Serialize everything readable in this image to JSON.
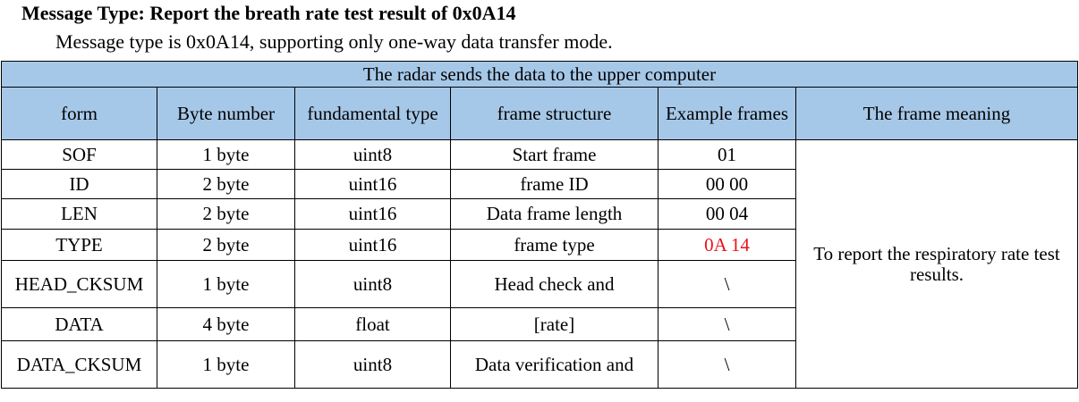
{
  "heading": "Message Type: Report the breath rate test result of 0x0A14",
  "subline": "Message type is 0x0A14, supporting only one-way data transfer mode.",
  "table": {
    "banner": "The radar sends the data to the upper computer",
    "headers": [
      "form",
      "Byte number",
      "fundamental type",
      "frame structure",
      "Example frames",
      "The frame meaning"
    ],
    "rows": [
      {
        "form": "SOF",
        "bytes": "1 byte",
        "type": "uint8",
        "structure": "Start frame",
        "example": "01"
      },
      {
        "form": "ID",
        "bytes": "2 byte",
        "type": "uint16",
        "structure": "frame ID",
        "example": "00 00"
      },
      {
        "form": "LEN",
        "bytes": "2 byte",
        "type": "uint16",
        "structure": "Data frame length",
        "example": "00 04"
      },
      {
        "form": "TYPE",
        "bytes": "2 byte",
        "type": "uint16",
        "structure": "frame type",
        "example": "0A 14"
      },
      {
        "form": "HEAD_CKSUM",
        "bytes": "1 byte",
        "type": "uint8",
        "structure": "Head check and",
        "example": "\\"
      },
      {
        "form": "DATA",
        "bytes": "4 byte",
        "type": "float",
        "structure": "[rate]",
        "example": "\\"
      },
      {
        "form": "DATA_CKSUM",
        "bytes": "1 byte",
        "type": "uint8",
        "structure": "Data verification and",
        "example": "\\"
      }
    ],
    "meaning": "To report the respiratory rate test results.",
    "highlight_color": "#e8141b",
    "header_bg": "#a6c8e8"
  }
}
